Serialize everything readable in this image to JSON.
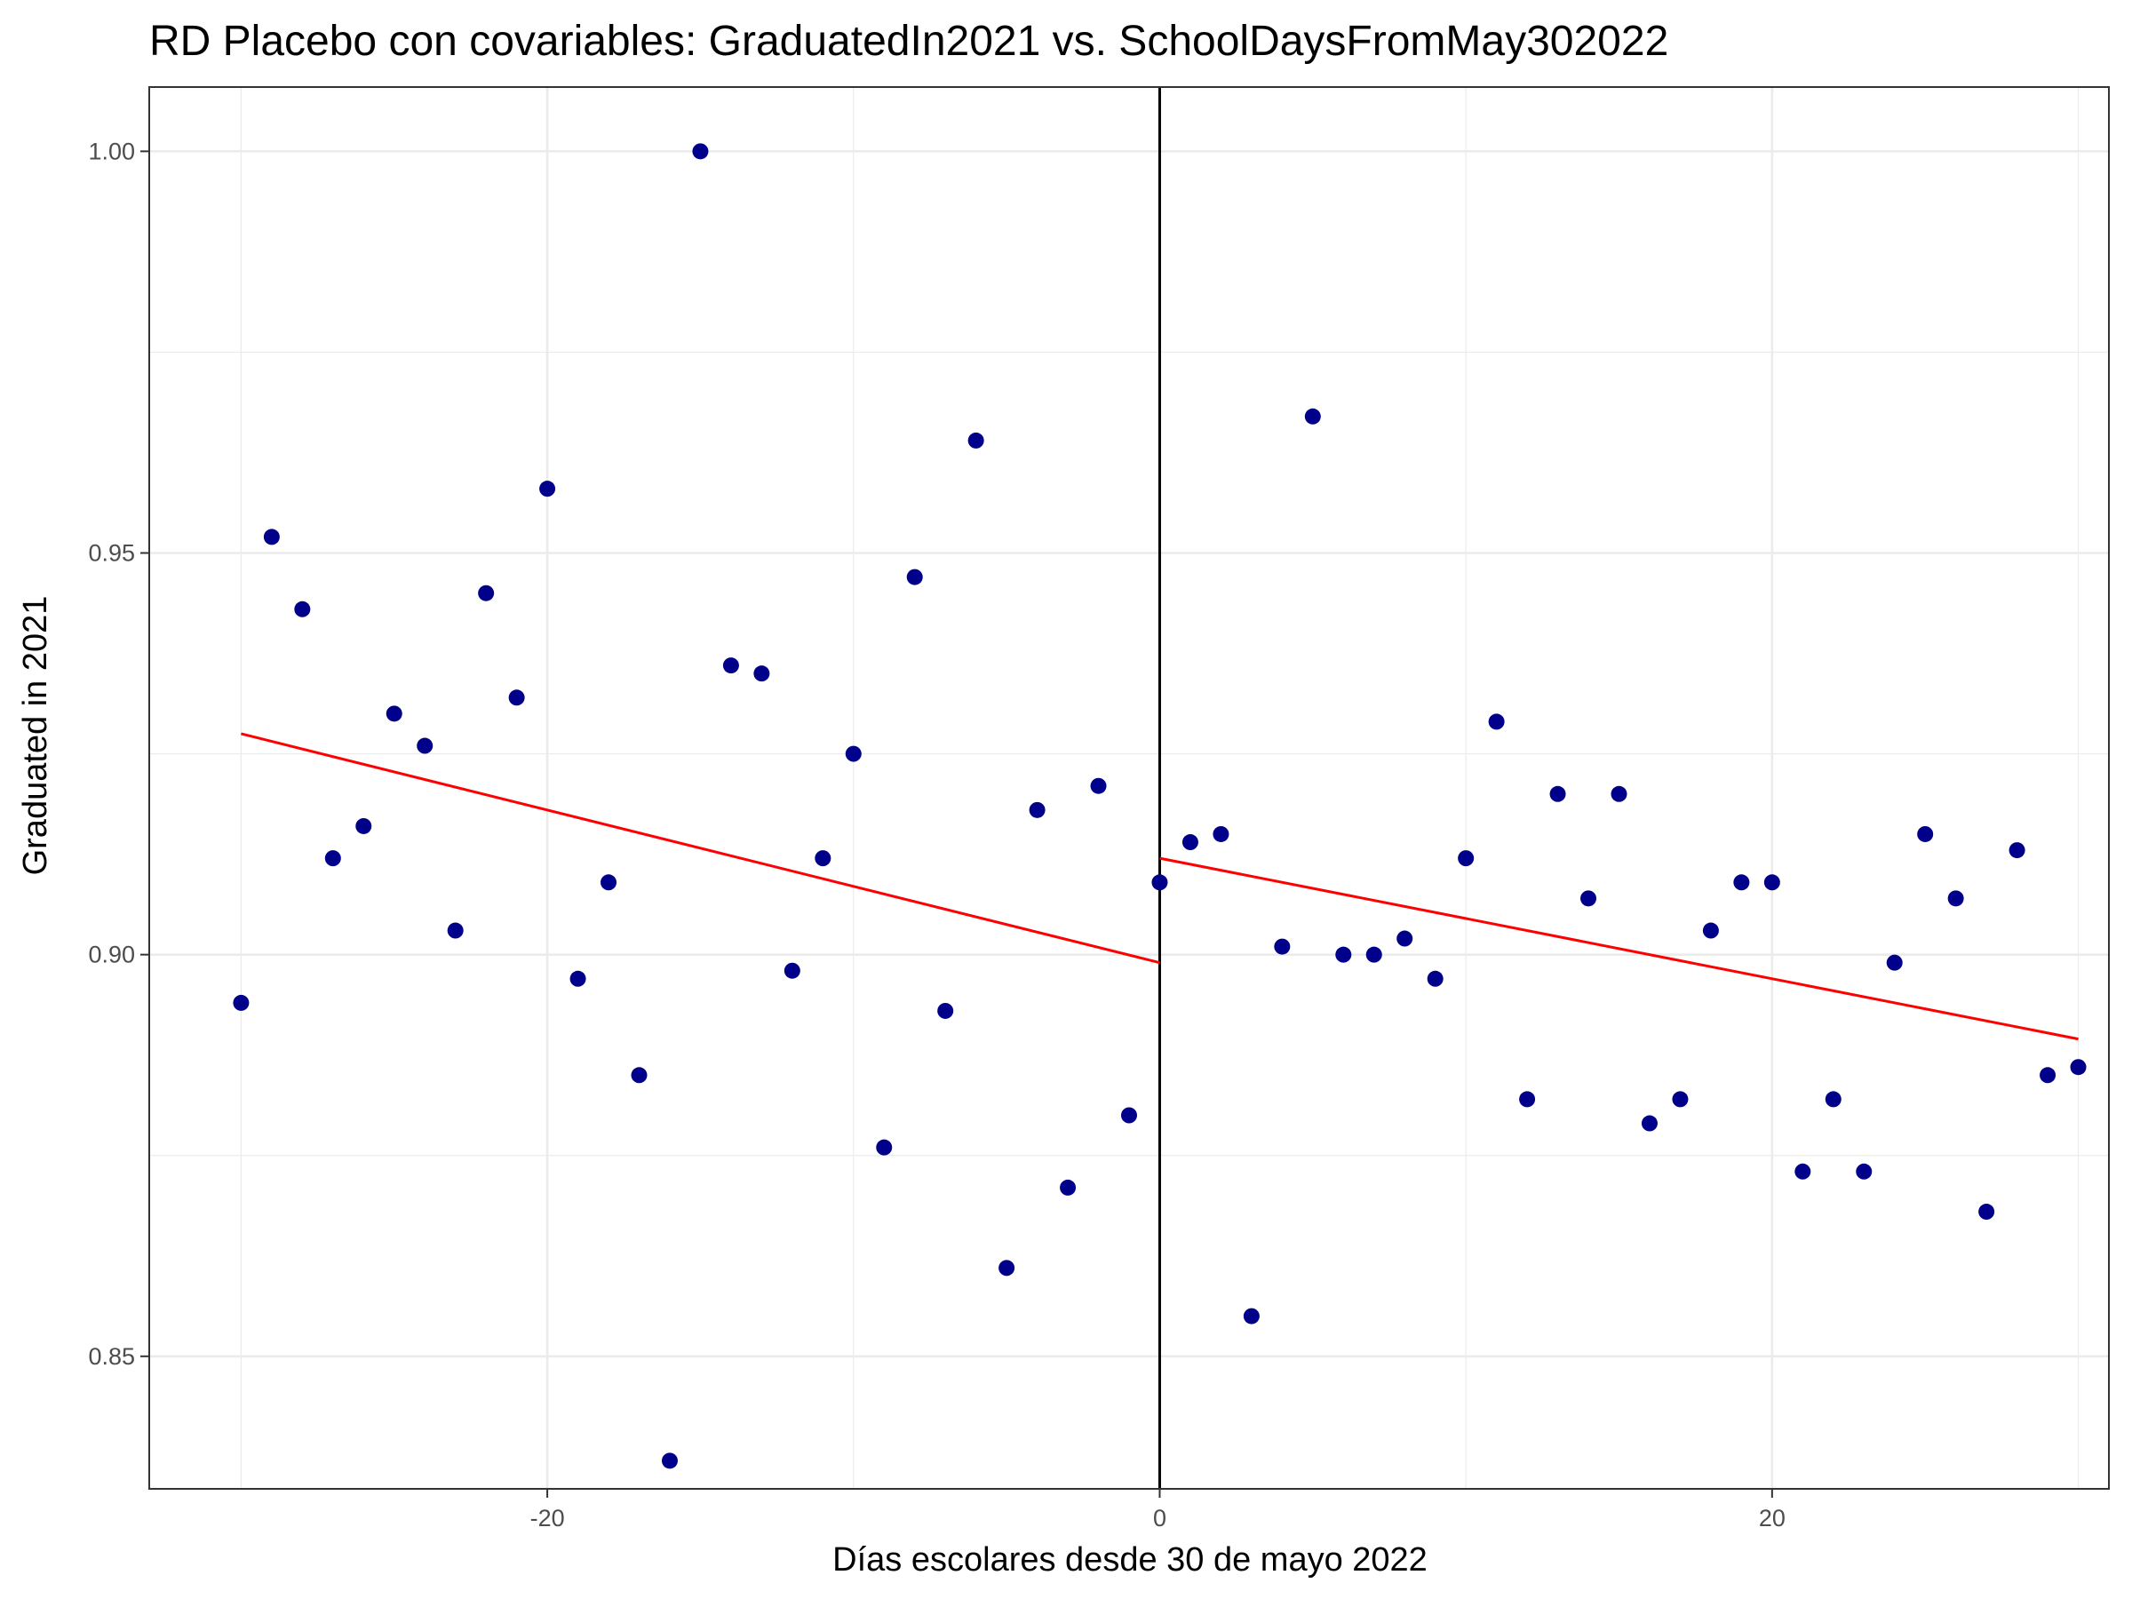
{
  "chart_data": {
    "type": "scatter",
    "title": "RD Placebo con covariables: GraduatedIn2021 vs. SchoolDaysFromMay302022",
    "xlabel": "Días escolares desde 30 de mayo 2022",
    "ylabel": "Graduated in 2021",
    "xlim": [
      -33,
      31
    ],
    "ylim": [
      0.8335,
      1.008
    ],
    "x_ticks": [
      {
        "value": -20,
        "label": "-20"
      },
      {
        "value": 0,
        "label": "0"
      },
      {
        "value": 20,
        "label": "20"
      }
    ],
    "y_ticks": [
      {
        "value": 0.85,
        "label": "0.85"
      },
      {
        "value": 0.9,
        "label": "0.90"
      },
      {
        "value": 0.95,
        "label": "0.95"
      },
      {
        "value": 1.0,
        "label": "1.00"
      }
    ],
    "grid": true,
    "cutoff": 0,
    "colors": {
      "points": "#00008B",
      "fit": "#FF0000",
      "cutoff": "#000000",
      "grid": "#EBEBEB",
      "border": "#333333"
    },
    "points": [
      {
        "x": -30,
        "y": 0.894
      },
      {
        "x": -29,
        "y": 0.952
      },
      {
        "x": -28,
        "y": 0.943
      },
      {
        "x": -27,
        "y": 0.912
      },
      {
        "x": -26,
        "y": 0.916
      },
      {
        "x": -25,
        "y": 0.93
      },
      {
        "x": -24,
        "y": 0.926
      },
      {
        "x": -23,
        "y": 0.903
      },
      {
        "x": -22,
        "y": 0.945
      },
      {
        "x": -21,
        "y": 0.932
      },
      {
        "x": -20,
        "y": 0.958
      },
      {
        "x": -19,
        "y": 0.897
      },
      {
        "x": -18,
        "y": 0.909
      },
      {
        "x": -17,
        "y": 0.885
      },
      {
        "x": -16,
        "y": 0.837
      },
      {
        "x": -15,
        "y": 1.0
      },
      {
        "x": -14,
        "y": 0.936
      },
      {
        "x": -13,
        "y": 0.935
      },
      {
        "x": -12,
        "y": 0.898
      },
      {
        "x": -11,
        "y": 0.912
      },
      {
        "x": -10,
        "y": 0.925
      },
      {
        "x": -9,
        "y": 0.876
      },
      {
        "x": -8,
        "y": 0.947
      },
      {
        "x": -7,
        "y": 0.893
      },
      {
        "x": -6,
        "y": 0.964
      },
      {
        "x": -5,
        "y": 0.861
      },
      {
        "x": -4,
        "y": 0.918
      },
      {
        "x": -3,
        "y": 0.871
      },
      {
        "x": -2,
        "y": 0.921
      },
      {
        "x": -1,
        "y": 0.88
      },
      {
        "x": 0,
        "y": 0.909
      },
      {
        "x": 1,
        "y": 0.914
      },
      {
        "x": 2,
        "y": 0.915
      },
      {
        "x": 3,
        "y": 0.855
      },
      {
        "x": 4,
        "y": 0.901
      },
      {
        "x": 5,
        "y": 0.967
      },
      {
        "x": 6,
        "y": 0.9
      },
      {
        "x": 7,
        "y": 0.9
      },
      {
        "x": 8,
        "y": 0.902
      },
      {
        "x": 9,
        "y": 0.897
      },
      {
        "x": 10,
        "y": 0.912
      },
      {
        "x": 11,
        "y": 0.929
      },
      {
        "x": 12,
        "y": 0.882
      },
      {
        "x": 13,
        "y": 0.92
      },
      {
        "x": 14,
        "y": 0.907
      },
      {
        "x": 15,
        "y": 0.92
      },
      {
        "x": 16,
        "y": 0.879
      },
      {
        "x": 17,
        "y": 0.882
      },
      {
        "x": 18,
        "y": 0.903
      },
      {
        "x": 19,
        "y": 0.909
      },
      {
        "x": 20,
        "y": 0.909
      },
      {
        "x": 21,
        "y": 0.873
      },
      {
        "x": 22,
        "y": 0.882
      },
      {
        "x": 23,
        "y": 0.873
      },
      {
        "x": 24,
        "y": 0.899
      },
      {
        "x": 25,
        "y": 0.915
      },
      {
        "x": 26,
        "y": 0.907
      },
      {
        "x": 27,
        "y": 0.868
      },
      {
        "x": 28,
        "y": 0.913
      },
      {
        "x": 29,
        "y": 0.885
      },
      {
        "x": 30,
        "y": 0.886
      }
    ],
    "fit_lines": [
      {
        "side": "left",
        "x": [
          -30,
          0
        ],
        "y": [
          0.9275,
          0.899
        ]
      },
      {
        "side": "right",
        "x": [
          0,
          30
        ],
        "y": [
          0.912,
          0.8895
        ]
      }
    ]
  }
}
